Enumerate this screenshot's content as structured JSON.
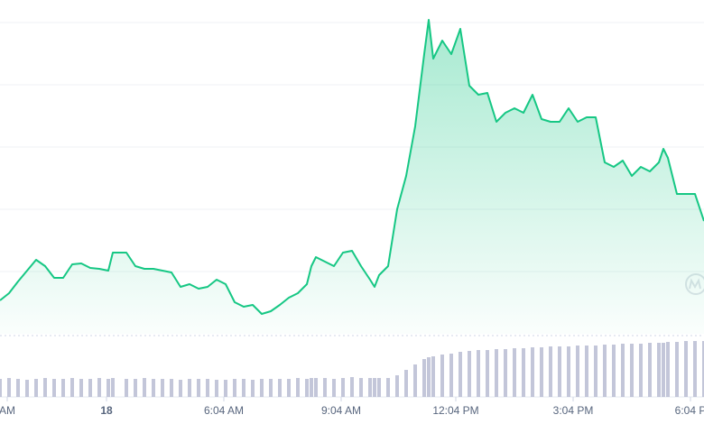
{
  "chart_data": {
    "type": "line",
    "color": "#16c784",
    "volume_color": "#c3c6d9",
    "x": [
      0,
      10,
      20,
      30,
      40,
      50,
      60,
      70,
      80,
      90,
      100,
      110,
      120,
      125,
      140,
      150,
      160,
      170,
      180,
      190,
      200,
      210,
      220,
      230,
      240,
      250,
      260,
      270,
      280,
      290,
      300,
      310,
      320,
      330,
      340,
      345,
      350,
      360,
      370,
      380,
      390,
      400,
      410,
      415,
      420,
      430,
      440,
      450,
      460,
      470,
      475,
      480,
      490,
      500,
      510,
      520,
      530,
      540,
      550,
      560,
      570,
      580,
      590,
      600,
      610,
      620,
      630,
      640,
      650,
      660,
      670,
      680,
      690,
      700,
      710,
      720,
      730,
      735,
      740,
      750,
      760,
      770,
      780
    ],
    "values": [
      37,
      45,
      58,
      70,
      82,
      75,
      62,
      62,
      77,
      78,
      73,
      72,
      70,
      90,
      90,
      75,
      72,
      72,
      70,
      68,
      52,
      55,
      50,
      52,
      60,
      55,
      35,
      30,
      32,
      22,
      25,
      32,
      40,
      45,
      55,
      75,
      85,
      80,
      75,
      90,
      92,
      75,
      60,
      52,
      65,
      75,
      138,
      175,
      230,
      310,
      348,
      305,
      325,
      310,
      338,
      275,
      265,
      267,
      235,
      245,
      250,
      245,
      265,
      238,
      235,
      235,
      250,
      235,
      240,
      240,
      190,
      185,
      192,
      175,
      185,
      180,
      190,
      205,
      195,
      155,
      155,
      155,
      125
    ],
    "volume": [
      20,
      21,
      20,
      19,
      20,
      21,
      20,
      20,
      21,
      20,
      20,
      21,
      20,
      21,
      20,
      20,
      21,
      20,
      20,
      20,
      19,
      20,
      20,
      20,
      19,
      19,
      20,
      20,
      19,
      20,
      20,
      20,
      20,
      21,
      20,
      21,
      21,
      21,
      20,
      21,
      22,
      21,
      21,
      21,
      21,
      21,
      24,
      30,
      36,
      42,
      44,
      45,
      47,
      48,
      50,
      51,
      52,
      52,
      53,
      53,
      54,
      54,
      55,
      55,
      56,
      56,
      56,
      57,
      57,
      57,
      58,
      58,
      59,
      59,
      59,
      60,
      60,
      60,
      61,
      61,
      62,
      62,
      62
    ],
    "xlim": [
      0,
      780
    ],
    "ylim": [
      0,
      350
    ],
    "y2lim": [
      0,
      100
    ],
    "xticks": [
      {
        "value": 8,
        "label": "AM"
      },
      {
        "value": 118,
        "label": "18"
      },
      {
        "value": 248,
        "label": "6:04 AM"
      },
      {
        "value": 378,
        "label": "9:04 AM"
      },
      {
        "value": 505,
        "label": "12:04 PM"
      },
      {
        "value": 635,
        "label": "3:04 PM"
      },
      {
        "value": 765,
        "label": "6:04 P"
      }
    ]
  }
}
